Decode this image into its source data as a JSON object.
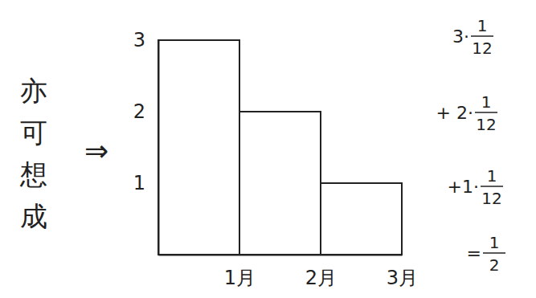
{
  "chart_data": {
    "type": "histogram",
    "bins": [
      0,
      1,
      2,
      3
    ],
    "values": [
      3,
      2,
      1
    ],
    "color": "#222222",
    "xlim": [
      0,
      3
    ],
    "xticks": [
      {
        "value": 1,
        "label": "1月"
      },
      {
        "value": 2,
        "label": "2月"
      },
      {
        "value": 3,
        "label": "3月"
      }
    ],
    "ylim": [
      0,
      3
    ],
    "yticks": [
      1,
      2,
      3
    ],
    "grid": false,
    "annotations": [
      "亦可想成",
      "⇒"
    ],
    "formula": [
      [
        "3·",
        "1",
        "12"
      ],
      [
        "+ 2·",
        "1",
        "12"
      ],
      [
        "+1·",
        "1",
        "12"
      ],
      [
        "= ",
        "1",
        "2"
      ]
    ]
  }
}
